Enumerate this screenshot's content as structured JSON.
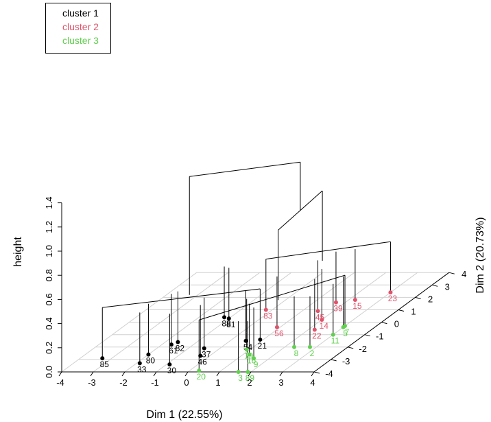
{
  "chart_data": {
    "type": "scatter",
    "title": "",
    "xlabel": "Dim 1 (22.55%)",
    "ylabel": "Dim 2 (20.73%)",
    "zlabel": "height",
    "x_ticks": [
      "-4",
      "-3",
      "-2",
      "-1",
      "0",
      "1",
      "2",
      "3",
      "4"
    ],
    "y_ticks": [
      "-4",
      "-3",
      "-2",
      "-1",
      "0",
      "1",
      "2",
      "3",
      "4"
    ],
    "z_ticks": [
      "0.0",
      "0.2",
      "0.4",
      "0.6",
      "0.8",
      "1.0",
      "1.2",
      "1.4"
    ],
    "xlim": [
      -4,
      4
    ],
    "ylim": [
      -4,
      4
    ],
    "zlim": [
      0,
      1.4
    ],
    "grid": true,
    "legend_position": "top-left",
    "colors": {
      "cluster 1": "#000000",
      "cluster 2": "#df536b",
      "cluster 3": "#61d04f"
    },
    "series": [
      {
        "name": "cluster 1",
        "color": "#000000",
        "points": [
          {
            "label": "85",
            "x": -3.3,
            "y": -2.9
          },
          {
            "label": "33",
            "x": -1.9,
            "y": -3.3
          },
          {
            "label": "80",
            "x": -2.0,
            "y": -2.6
          },
          {
            "label": "30",
            "x": -0.9,
            "y": -3.4
          },
          {
            "label": "46",
            "x": -0.3,
            "y": -2.7
          },
          {
            "label": "21",
            "x": 0.9,
            "y": -1.4
          },
          {
            "label": "82",
            "x": -1.6,
            "y": -1.6
          },
          {
            "label": "61",
            "x": -1.7,
            "y": -1.8
          },
          {
            "label": "37",
            "x": -0.5,
            "y": -2.1
          },
          {
            "label": "54",
            "x": 0.5,
            "y": -1.5
          },
          {
            "label": "88",
            "x": -1.2,
            "y": 0.4
          },
          {
            "label": "81",
            "x": -1.0,
            "y": 0.3
          }
        ]
      },
      {
        "name": "cluster 2",
        "color": "#df536b",
        "points": [
          {
            "label": "23",
            "x": 3.0,
            "y": 2.4
          },
          {
            "label": "15",
            "x": 2.2,
            "y": 1.8
          },
          {
            "label": "14",
            "x": 2.0,
            "y": 0.2
          },
          {
            "label": "22",
            "x": 2.2,
            "y": -0.6
          },
          {
            "label": "83",
            "x": -0.2,
            "y": 1.0
          },
          {
            "label": "56",
            "x": 0.9,
            "y": -0.4
          },
          {
            "label": "39",
            "x": 1.7,
            "y": 1.6
          },
          {
            "label": "45",
            "x": 1.5,
            "y": 0.9
          }
        ]
      },
      {
        "name": "cluster 3",
        "color": "#61d04f",
        "points": [
          {
            "label": "11",
            "x": 3.0,
            "y": -1.0
          },
          {
            "label": "2",
            "x": 2.8,
            "y": -2.0
          },
          {
            "label": "8",
            "x": 2.3,
            "y": -2.0
          },
          {
            "label": "5",
            "x": 3.0,
            "y": -0.4
          },
          {
            "label": "7",
            "x": 3.0,
            "y": -0.3
          },
          {
            "label": "19",
            "x": 0.9,
            "y": -2.2
          },
          {
            "label": "16",
            "x": 1.2,
            "y": -2.6
          },
          {
            "label": "9",
            "x": 1.5,
            "y": -2.9
          },
          {
            "label": "20",
            "x": 0.3,
            "y": -3.9
          },
          {
            "label": "3",
            "x": 1.6,
            "y": -4.0
          },
          {
            "label": "89",
            "x": 1.9,
            "y": -4.0
          }
        ]
      }
    ]
  },
  "legend": {
    "items": [
      {
        "label": "cluster 1",
        "color": "#000000"
      },
      {
        "label": "cluster 2",
        "color": "#df536b"
      },
      {
        "label": "cluster 3",
        "color": "#61d04f"
      }
    ]
  }
}
